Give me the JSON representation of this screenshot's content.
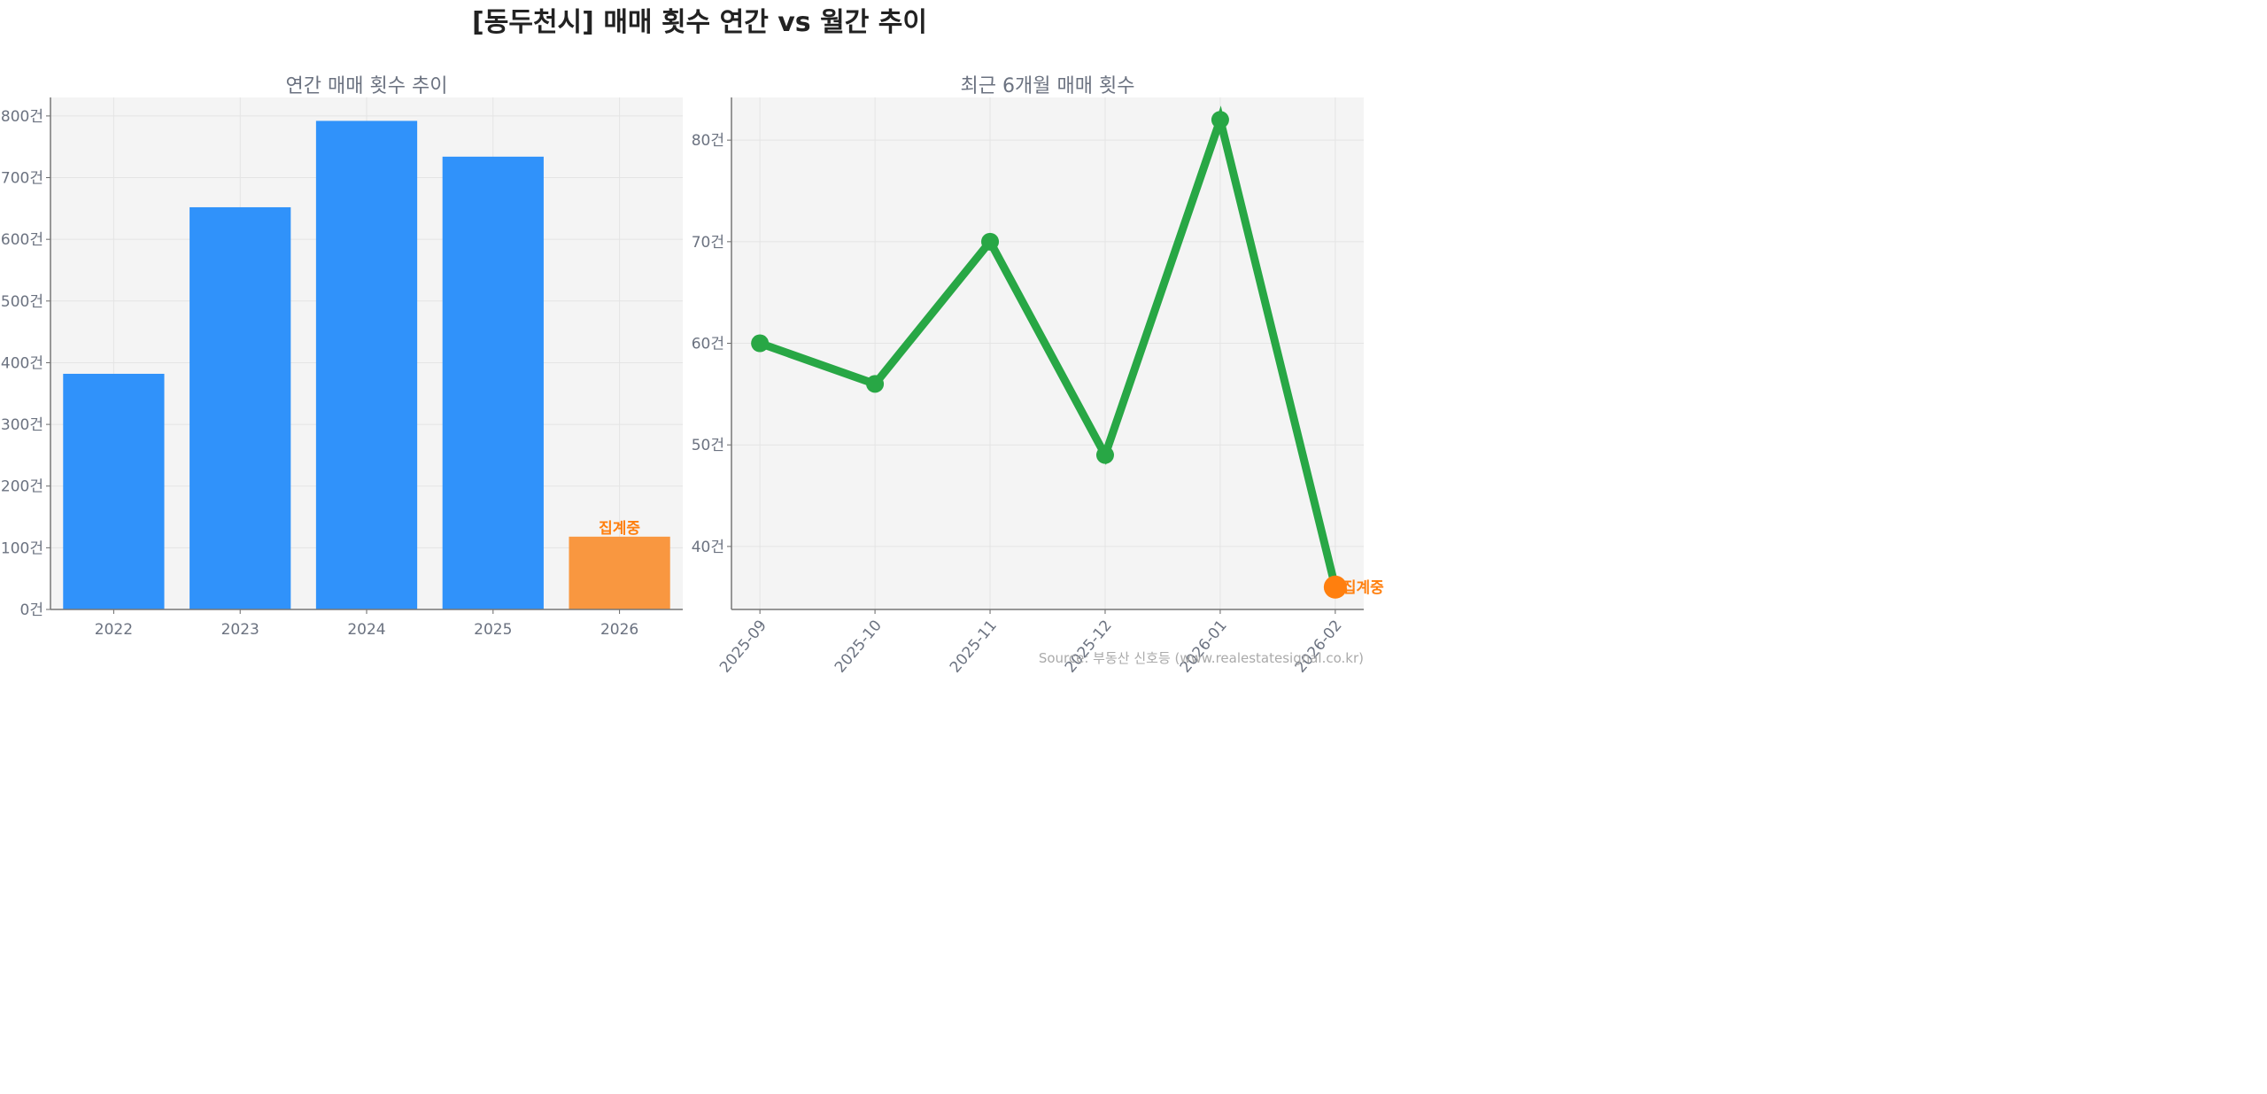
{
  "title": "[동두천시] 매매 횟수 연간 vs 월간 추이",
  "source": "Source: 부동산 신호등 (www.realestatesignal.co.kr)",
  "chart_data": [
    {
      "type": "bar",
      "title": "연간 매매 횟수 추이",
      "categories": [
        "2022",
        "2023",
        "2024",
        "2025",
        "2026"
      ],
      "values": [
        382,
        652,
        792,
        734,
        118
      ],
      "colors": [
        "#3092fa",
        "#3092fa",
        "#3092fa",
        "#3092fa",
        "#f99740"
      ],
      "ylim": [
        0,
        830
      ],
      "yticks": [
        0,
        100,
        200,
        300,
        400,
        500,
        600,
        700,
        800
      ],
      "tick_suffix": "건",
      "grid": true,
      "annotation": {
        "category": "2026",
        "text": "집계중",
        "color": "#ff7f0e"
      }
    },
    {
      "type": "line",
      "title": "최근 6개월 매매 횟수",
      "categories": [
        "2025-09",
        "2025-10",
        "2025-11",
        "2025-12",
        "2026-01",
        "2026-02"
      ],
      "values": [
        60,
        56,
        70,
        49,
        82,
        36
      ],
      "color": "#28a745",
      "ylim": [
        33.8,
        84.2
      ],
      "yticks": [
        40,
        50,
        60,
        70,
        80
      ],
      "tick_suffix": "건",
      "grid": true,
      "annotation": {
        "category": "2026-02",
        "text": "집계중",
        "color": "#ff7f0e"
      }
    }
  ]
}
